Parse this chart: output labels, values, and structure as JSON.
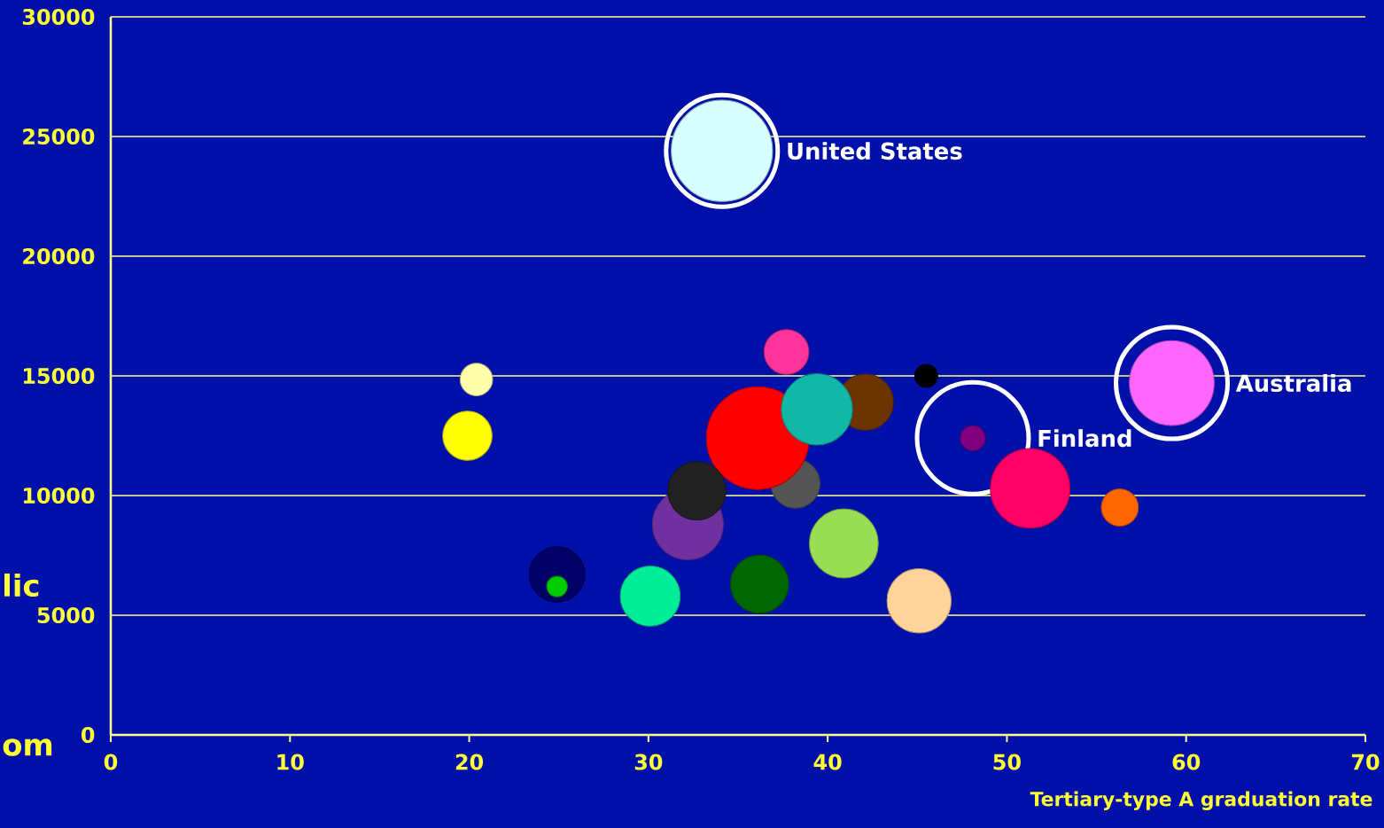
{
  "chart_data": {
    "type": "bubble",
    "xlabel": "Tertiary-type A graduation rate",
    "xlim": [
      0,
      70
    ],
    "xticks": [
      0,
      10,
      20,
      30,
      40,
      50,
      60,
      70
    ],
    "ylim": [
      0,
      30000
    ],
    "yticks": [
      0,
      5000,
      10000,
      15000,
      20000,
      25000,
      30000
    ],
    "grid": "y",
    "x": [
      34.1,
      59.2,
      48.1,
      20.4,
      19.9,
      37.7,
      45.5,
      38.2,
      36.1,
      42.1,
      39.4,
      32.2,
      32.7,
      51.3,
      56.3,
      40.9,
      24.9,
      24.9,
      30.1,
      36.2,
      45.1
    ],
    "values": [
      24400,
      14700,
      12400,
      14850,
      12500,
      16000,
      15000,
      10500,
      12400,
      13900,
      13600,
      8800,
      10200,
      10300,
      9500,
      8000,
      6700,
      6200,
      5800,
      6300,
      5600
    ],
    "sizes": [
      0.97,
      0.68,
      0.06,
      0.1,
      0.23,
      0.19,
      0.05,
      0.23,
      1,
      0.3,
      0.48,
      0.48,
      0.32,
      0.6,
      0.13,
      0.45,
      0.29,
      0.04,
      0.34,
      0.32,
      0.39
    ],
    "colors": [
      "#d8ffff",
      "#ff66ff",
      "#800080",
      "#ffffaa",
      "#ffff00",
      "#ff3399",
      "#000000",
      "#555555",
      "#ff0000",
      "#6b3300",
      "#11b8a8",
      "#7030a0",
      "#222222",
      "#ff0066",
      "#ff6600",
      "#99dd55",
      "#000066",
      "#00cc00",
      "#00ee99",
      "#006600",
      "#ffd49a"
    ],
    "annotations": [
      {
        "text": "United States",
        "x": 34.1,
        "y": 24400
      },
      {
        "text": "Australia",
        "x": 59.2,
        "y": 14700
      },
      {
        "text": "Finland",
        "x": 48.1,
        "y": 12400
      },
      "lic",
      "om"
    ]
  }
}
